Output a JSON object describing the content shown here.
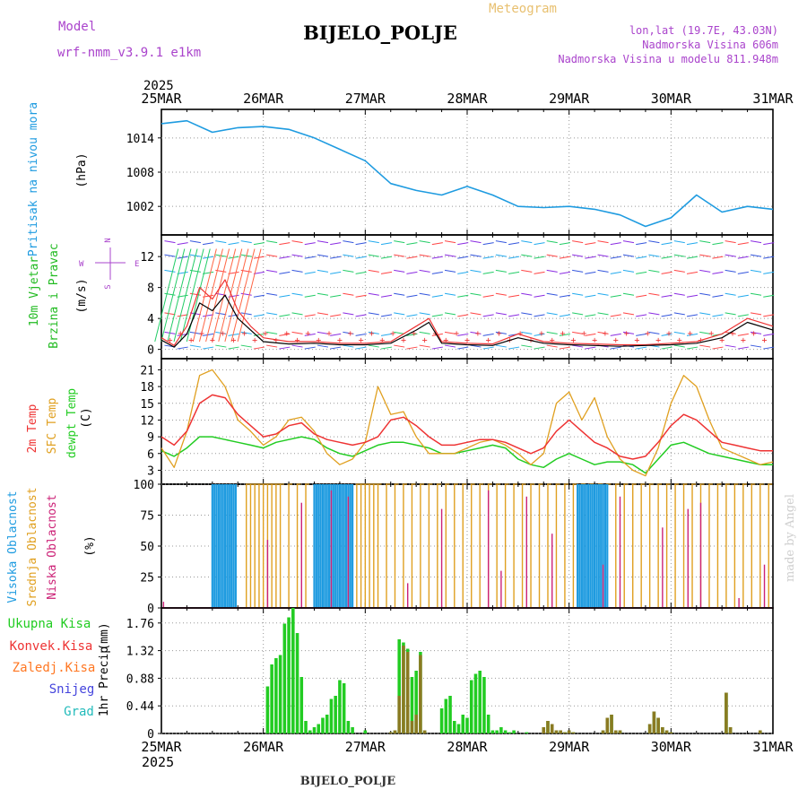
{
  "header": {
    "title": "BIJELO_POLJE",
    "subtitle": "Meteogram",
    "model_label": "Model",
    "model_name": "wrf-nmm_v3.9.1 e1km",
    "lonlat": "lon,lat (19.7E, 43.03N)",
    "elevation": "Nadmorska Visina 606m",
    "model_elevation": "Nadmorska Visina u modelu 811.948m",
    "footer": "BIJELO_POLJE",
    "watermark": "made by Angel"
  },
  "time_axis": {
    "year": "2025",
    "labels": [
      "25MAR",
      "26MAR",
      "27MAR",
      "28MAR",
      "29MAR",
      "30MAR",
      "31MAR"
    ]
  },
  "colors": {
    "pressure": "#1e9be0",
    "wind_label": "#22bb22",
    "temp2m": "#ee3333",
    "sfc": "#e0a020",
    "dewpt": "#22cc22",
    "cloud_high": "#1e9be0",
    "cloud_mid": "#e0a020",
    "cloud_low": "#cc2277",
    "precip_total": "#22cc22",
    "precip_conv": "#ee3333",
    "precip_frozen": "#ff7722",
    "snow": "#4444dd",
    "hail": "#22bbbb",
    "purple": "#aa44cc"
  },
  "chart_data": [
    {
      "type": "line",
      "panel": "pressure",
      "ylabel": "Pritisak na nivou mora",
      "unit": "(hPa)",
      "yticks": [
        1002,
        1008,
        1014
      ],
      "ylim": [
        997,
        1019
      ],
      "x": [
        0,
        6,
        12,
        18,
        24,
        30,
        36,
        42,
        48,
        54,
        60,
        66,
        72,
        78,
        84,
        90,
        96,
        102,
        108,
        114,
        120,
        126,
        132,
        138,
        144
      ],
      "series": [
        {
          "name": "Pritisak na nivou mora",
          "values": [
            1016.5,
            1017,
            1015,
            1015.8,
            1016,
            1015.5,
            1014,
            1012,
            1010,
            1006,
            1004.8,
            1004,
            1005.5,
            1004,
            1002,
            1001.8,
            1002,
            1001.5,
            1000.5,
            998.5,
            1000,
            1004,
            1001,
            1002,
            1001.5
          ]
        }
      ]
    },
    {
      "type": "line",
      "panel": "wind",
      "ylabel": [
        "10m Vjetar",
        "Brzina i Pravac"
      ],
      "unit": "(m/s)",
      "legend_compass": [
        "N",
        "W",
        "E",
        "S"
      ],
      "yticks": [
        0,
        4,
        8,
        12
      ],
      "ylim": [
        -1.2,
        14.8
      ],
      "x": [
        0,
        3,
        6,
        9,
        12,
        15,
        18,
        21,
        24,
        30,
        36,
        42,
        48,
        54,
        60,
        63,
        66,
        72,
        78,
        84,
        90,
        96,
        102,
        108,
        114,
        120,
        126,
        132,
        138,
        144
      ],
      "series": [
        {
          "name": "10m Vjetar",
          "values": [
            1.5,
            0.5,
            3,
            8,
            6.5,
            9,
            5,
            3,
            1.5,
            1,
            1,
            0.8,
            0.8,
            1,
            3,
            4,
            1,
            0.8,
            0.7,
            2,
            1,
            0.8,
            0.7,
            0.6,
            0.6,
            0.8,
            1,
            2,
            4,
            3
          ]
        },
        {
          "name": "",
          "values": [
            1.2,
            0.3,
            2,
            6,
            5,
            7,
            4,
            2.5,
            1,
            0.7,
            0.8,
            0.6,
            0.6,
            0.8,
            2.5,
            3.5,
            0.8,
            0.6,
            0.5,
            1.5,
            0.8,
            0.6,
            0.5,
            0.4,
            0.5,
            0.6,
            0.8,
            1.5,
            3.5,
            2.5
          ]
        }
      ]
    },
    {
      "type": "line",
      "panel": "temperature",
      "ylabel": [
        "2m Temp",
        "SFC Temp",
        "dewpt Temp"
      ],
      "unit": "(C)",
      "yticks": [
        3,
        6,
        9,
        12,
        15,
        18,
        21
      ],
      "ylim": [
        0.5,
        23
      ],
      "x": [
        0,
        3,
        6,
        9,
        12,
        15,
        18,
        21,
        24,
        27,
        30,
        33,
        36,
        39,
        42,
        45,
        48,
        51,
        54,
        57,
        60,
        63,
        66,
        69,
        72,
        75,
        78,
        81,
        84,
        87,
        90,
        93,
        96,
        99,
        102,
        105,
        108,
        111,
        114,
        117,
        120,
        123,
        126,
        129,
        132,
        135,
        138,
        141,
        144
      ],
      "series": [
        {
          "name": "2m Temp",
          "values": [
            9,
            7.5,
            10,
            15,
            16.5,
            16,
            13,
            11,
            9,
            9.5,
            11,
            11.5,
            9.5,
            8.5,
            8,
            7.5,
            8,
            9,
            12,
            12.5,
            11,
            9,
            7.5,
            7.5,
            8,
            8.5,
            8.5,
            8,
            7,
            6,
            7,
            10,
            12,
            10,
            8,
            7,
            5.5,
            5,
            5.5,
            8,
            11,
            13,
            12,
            10,
            8,
            7.5,
            7,
            6.5,
            6.5
          ]
        },
        {
          "name": "SFC Temp",
          "values": [
            7,
            3.5,
            10,
            20,
            21,
            18,
            12,
            10,
            7.5,
            9,
            12,
            12.5,
            10,
            6,
            4,
            5,
            8,
            18,
            13,
            13.5,
            9,
            6,
            6,
            6,
            7,
            8,
            8.5,
            7.5,
            6,
            4,
            6,
            15,
            17,
            12,
            16,
            9,
            5,
            3,
            2,
            7,
            15,
            20,
            18,
            12,
            7,
            6,
            5,
            4,
            4.5
          ]
        },
        {
          "name": "dewpt Temp",
          "values": [
            6.5,
            5.5,
            7,
            9,
            9,
            8.5,
            8,
            7.5,
            7,
            8,
            8.5,
            9,
            8.5,
            7,
            6,
            5.5,
            6.5,
            7.5,
            8,
            8,
            7.5,
            7,
            6,
            6,
            6.5,
            7,
            7.5,
            7,
            5,
            4,
            3.5,
            5,
            6,
            5,
            4,
            4.5,
            4.5,
            4,
            2.5,
            5,
            7.5,
            8,
            7,
            6,
            5.5,
            5,
            4.5,
            4,
            4
          ]
        }
      ]
    },
    {
      "type": "bar",
      "panel": "clouds",
      "ylabel": [
        "Visoka Oblacnost",
        "Srednja Oblacnost",
        "Niska Oblacnost"
      ],
      "unit": "(%)",
      "yticks": [
        0,
        25,
        50,
        75,
        100
      ],
      "ylim": [
        0,
        100
      ],
      "series": [
        {
          "name": "Visoka Oblacnost",
          "x": [
            12,
            12.5,
            13,
            13.5,
            14,
            14.5,
            15,
            15.5,
            16,
            16.5,
            17,
            17.5,
            36,
            36.5,
            37,
            37.5,
            38,
            38.5,
            39,
            39.5,
            40,
            40.5,
            41,
            41.5,
            42,
            42.5,
            43,
            43.5,
            44,
            44.5,
            45,
            98,
            98.5,
            99,
            99.5,
            100,
            100.5,
            101,
            101.5,
            102,
            102.5,
            103,
            103.5,
            104,
            104.5,
            105
          ],
          "values": [
            100,
            100,
            100,
            100,
            100,
            100,
            100,
            100,
            100,
            100,
            100,
            100,
            100,
            100,
            100,
            100,
            100,
            100,
            100,
            100,
            100,
            100,
            100,
            100,
            100,
            100,
            100,
            100,
            100,
            100,
            100,
            100,
            100,
            100,
            100,
            100,
            100,
            100,
            100,
            100,
            100,
            100,
            100,
            100,
            100,
            100
          ]
        },
        {
          "name": "Srednja Oblacnost",
          "x": [
            20,
            21,
            22,
            23,
            24,
            25,
            26,
            27,
            28,
            30,
            32,
            34,
            46,
            47,
            48,
            49,
            50,
            51,
            53,
            55,
            57,
            59,
            61,
            63,
            65,
            67,
            69,
            71,
            73,
            75,
            77,
            79,
            81,
            83,
            85,
            87,
            89,
            91,
            93,
            95,
            97,
            99,
            101,
            103,
            105,
            107,
            109,
            111,
            113,
            115,
            117,
            119,
            121,
            123,
            125,
            127,
            129,
            131,
            133,
            135,
            137,
            139,
            141,
            143
          ],
          "values": [
            100,
            100,
            100,
            100,
            100,
            100,
            100,
            100,
            100,
            100,
            100,
            100,
            100,
            100,
            100,
            100,
            100,
            100,
            100,
            100,
            100,
            100,
            100,
            100,
            100,
            100,
            100,
            100,
            100,
            100,
            100,
            100,
            100,
            100,
            100,
            100,
            100,
            100,
            100,
            100,
            100,
            100,
            100,
            100,
            100,
            100,
            100,
            100,
            100,
            100,
            100,
            100,
            100,
            100,
            100,
            100,
            100,
            100,
            100,
            100,
            100,
            100,
            100,
            100
          ]
        },
        {
          "name": "Niska Oblacnost",
          "x": [
            0.5,
            25,
            33,
            40,
            44,
            58,
            66,
            77,
            80,
            86,
            92,
            104,
            108,
            118,
            124,
            127,
            136,
            142
          ],
          "values": [
            5,
            55,
            85,
            95,
            90,
            20,
            80,
            95,
            30,
            90,
            60,
            35,
            90,
            65,
            80,
            85,
            8,
            35
          ]
        }
      ]
    },
    {
      "type": "bar",
      "panel": "precip",
      "ylabel": "1hr Precip",
      "unit": "(mm)",
      "legend": [
        "Ukupna Kisa",
        "Konvek.Kisa",
        "Zaledj.Kisa",
        "Snijeg",
        "Grad"
      ],
      "yticks": [
        0,
        0.44,
        0.88,
        1.32,
        1.76
      ],
      "ylim": [
        0,
        2.0
      ],
      "x": [
        25,
        26,
        27,
        28,
        29,
        30,
        31,
        32,
        33,
        34,
        35,
        36,
        37,
        38,
        39,
        40,
        41,
        42,
        43,
        44,
        45,
        48,
        54,
        55,
        56,
        57,
        58,
        59,
        60,
        61,
        62,
        66,
        67,
        68,
        69,
        70,
        71,
        72,
        73,
        74,
        75,
        76,
        77,
        78,
        79,
        80,
        81,
        82,
        83,
        86,
        90,
        91,
        92,
        93,
        94,
        95,
        96,
        97,
        104,
        105,
        106,
        107,
        108,
        115,
        116,
        117,
        118,
        119,
        120,
        133,
        134,
        141
      ],
      "series": [
        {
          "name": "Ukupna Kisa",
          "values": [
            0.75,
            1.1,
            1.2,
            1.25,
            1.75,
            1.85,
            2.0,
            1.6,
            0.9,
            0.2,
            0.05,
            0.1,
            0.15,
            0.25,
            0.3,
            0.55,
            0.6,
            0.85,
            0.8,
            0.2,
            0.1,
            0.05,
            0.02,
            0.05,
            1.5,
            1.45,
            1.35,
            0.9,
            1.0,
            1.3,
            0.05,
            0.4,
            0.55,
            0.6,
            0.2,
            0.15,
            0.3,
            0.25,
            0.85,
            0.95,
            1.0,
            0.9,
            0.3,
            0.05,
            0.05,
            0.1,
            0.05,
            0.02,
            0.05,
            0.02,
            0.1,
            0.2,
            0.15,
            0.05,
            0.05,
            0.02,
            0.05,
            0.02,
            0.05,
            0.25,
            0.3,
            0.05,
            0.05,
            0.15,
            0.35,
            0.25,
            0.1,
            0.05,
            0.02,
            0.65,
            0.1,
            0.05
          ]
        },
        {
          "name": "Konvek.Kisa",
          "values": [
            0,
            0,
            0,
            0,
            0,
            0,
            0,
            0,
            0,
            0,
            0,
            0,
            0,
            0,
            0,
            0,
            0,
            0,
            0,
            0,
            0,
            0,
            0.02,
            0.05,
            0.6,
            1.4,
            1.3,
            0.2,
            0.3,
            1.25,
            0.05,
            0,
            0,
            0,
            0,
            0,
            0,
            0,
            0,
            0,
            0,
            0,
            0,
            0,
            0,
            0,
            0,
            0,
            0,
            0,
            0.1,
            0.2,
            0.15,
            0.05,
            0.05,
            0.02,
            0.05,
            0.02,
            0.05,
            0.25,
            0.3,
            0.05,
            0.05,
            0.15,
            0.35,
            0.25,
            0.1,
            0.05,
            0.02,
            0.65,
            0.1,
            0.05
          ]
        }
      ]
    }
  ]
}
